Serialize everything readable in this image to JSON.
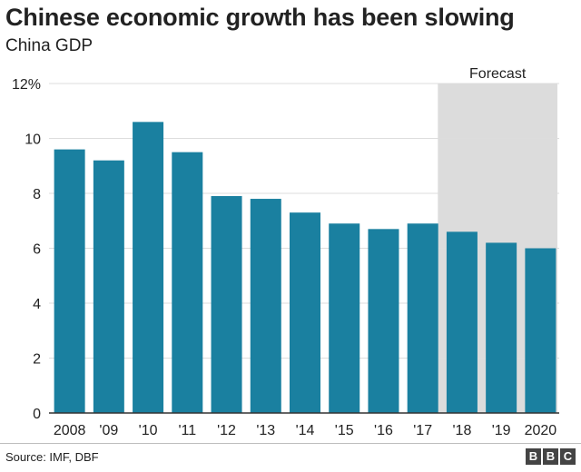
{
  "title": "Chinese economic growth has been slowing",
  "subtitle": "China GDP",
  "source": "Source: IMF, DBF",
  "logo": [
    "B",
    "B",
    "C"
  ],
  "colors": {
    "bar": "#1a80a0",
    "forecast_band": "#dcdcdc",
    "grid": "#dddddd",
    "axis": "#333333",
    "text": "#222222"
  },
  "chart_data": {
    "type": "bar",
    "categories": [
      "2008",
      "'09",
      "'10",
      "'11",
      "'12",
      "'13",
      "'14",
      "'15",
      "'16",
      "'17",
      "'18",
      "'19",
      "2020"
    ],
    "values": [
      9.6,
      9.2,
      10.6,
      9.5,
      7.9,
      7.8,
      7.3,
      6.9,
      6.7,
      6.9,
      6.6,
      6.2,
      6.0
    ],
    "ylim": [
      0,
      12
    ],
    "yticks": [
      0,
      2,
      4,
      6,
      8,
      10,
      12
    ],
    "ytick_labels": [
      "0",
      "2",
      "4",
      "6",
      "8",
      "10",
      "12%"
    ],
    "xlabel": "",
    "ylabel": "",
    "grid": true,
    "forecast": {
      "label": "Forecast",
      "from_category": "'18",
      "to_category": "2020"
    }
  }
}
